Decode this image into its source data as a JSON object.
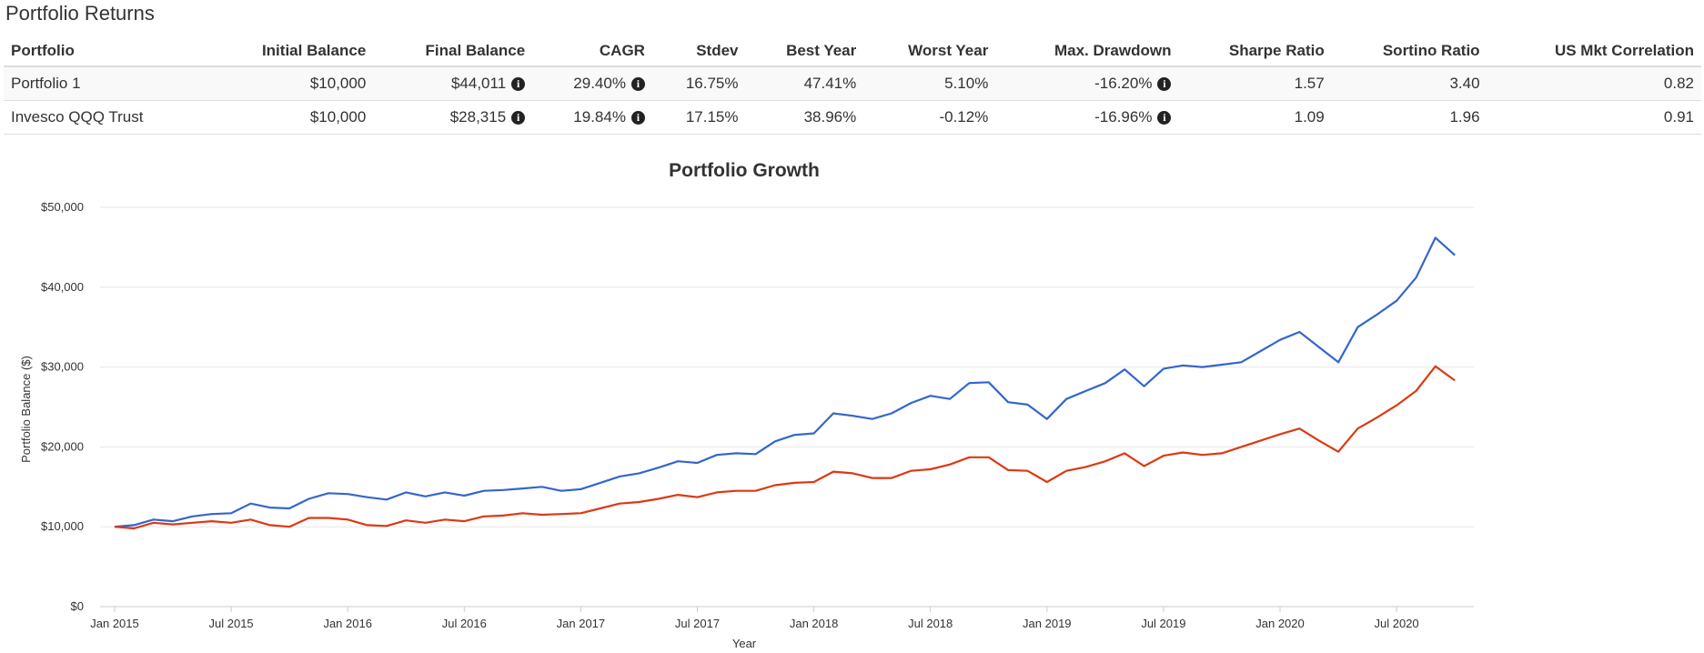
{
  "header": {
    "title": "Portfolio Returns"
  },
  "table": {
    "columns": [
      "Portfolio",
      "Initial Balance",
      "Final Balance",
      "CAGR",
      "Stdev",
      "Best Year",
      "Worst Year",
      "Max. Drawdown",
      "Sharpe Ratio",
      "Sortino Ratio",
      "US Mkt Correlation"
    ],
    "rows": [
      [
        "Portfolio 1",
        "$10,000",
        "$44,011",
        "29.40%",
        "16.75%",
        "47.41%",
        "5.10%",
        "-16.20%",
        "1.57",
        "3.40",
        "0.82"
      ],
      [
        "Invesco QQQ Trust",
        "$10,000",
        "$28,315",
        "19.84%",
        "17.15%",
        "38.96%",
        "-0.12%",
        "-16.96%",
        "1.09",
        "1.96",
        "0.91"
      ]
    ]
  },
  "chart_data": {
    "type": "line",
    "title": "Portfolio Growth",
    "x_label": "Year",
    "y_label": "Portfolio Balance ($)",
    "x": [
      "2015-01",
      "2015-02",
      "2015-03",
      "2015-04",
      "2015-05",
      "2015-06",
      "2015-07",
      "2015-08",
      "2015-09",
      "2015-10",
      "2015-11",
      "2015-12",
      "2016-01",
      "2016-02",
      "2016-03",
      "2016-04",
      "2016-05",
      "2016-06",
      "2016-07",
      "2016-08",
      "2016-09",
      "2016-10",
      "2016-11",
      "2016-12",
      "2017-01",
      "2017-02",
      "2017-03",
      "2017-04",
      "2017-05",
      "2017-06",
      "2017-07",
      "2017-08",
      "2017-09",
      "2017-10",
      "2017-11",
      "2017-12",
      "2018-01",
      "2018-02",
      "2018-03",
      "2018-04",
      "2018-05",
      "2018-06",
      "2018-07",
      "2018-08",
      "2018-09",
      "2018-10",
      "2018-11",
      "2018-12",
      "2019-01",
      "2019-02",
      "2019-03",
      "2019-04",
      "2019-05",
      "2019-06",
      "2019-07",
      "2019-08",
      "2019-09",
      "2019-10",
      "2019-11",
      "2019-12",
      "2020-01",
      "2020-02",
      "2020-03",
      "2020-04",
      "2020-05",
      "2020-06",
      "2020-07",
      "2020-08",
      "2020-09",
      "2020-10"
    ],
    "xticks": [
      {
        "value": "2015-01",
        "label": "Jan 2015"
      },
      {
        "value": "2015-07",
        "label": "Jul 2015"
      },
      {
        "value": "2016-01",
        "label": "Jan 2016"
      },
      {
        "value": "2016-07",
        "label": "Jul 2016"
      },
      {
        "value": "2017-01",
        "label": "Jan 2017"
      },
      {
        "value": "2017-07",
        "label": "Jul 2017"
      },
      {
        "value": "2018-01",
        "label": "Jan 2018"
      },
      {
        "value": "2018-07",
        "label": "Jul 2018"
      },
      {
        "value": "2019-01",
        "label": "Jan 2019"
      },
      {
        "value": "2019-07",
        "label": "Jul 2019"
      },
      {
        "value": "2020-01",
        "label": "Jan 2020"
      },
      {
        "value": "2020-07",
        "label": "Jul 2020"
      }
    ],
    "ylim": [
      0,
      50000
    ],
    "yticks": [
      {
        "value": 0,
        "label": "$0"
      },
      {
        "value": 10000,
        "label": "$10,000"
      },
      {
        "value": 20000,
        "label": "$20,000"
      },
      {
        "value": 30000,
        "label": "$30,000"
      },
      {
        "value": 40000,
        "label": "$40,000"
      },
      {
        "value": 50000,
        "label": "$50,000"
      }
    ],
    "grid": true,
    "series": [
      {
        "name": "Portfolio 1",
        "color": "#3366cc",
        "values": [
          10000,
          10200,
          10900,
          10700,
          11300,
          11600,
          11700,
          12900,
          12400,
          12300,
          13500,
          14200,
          14100,
          13700,
          13400,
          14300,
          13800,
          14300,
          13900,
          14500,
          14600,
          14800,
          15000,
          14500,
          14700,
          15500,
          16300,
          16700,
          17400,
          18200,
          18000,
          19000,
          19200,
          19100,
          20700,
          21500,
          21700,
          24200,
          23900,
          23500,
          24200,
          25500,
          26400,
          26000,
          28000,
          28100,
          25600,
          25300,
          23500,
          26000,
          27000,
          28000,
          29700,
          27600,
          29800,
          30200,
          30000,
          30300,
          30600,
          32000,
          33400,
          34400,
          32500,
          30600,
          35000,
          36600,
          38300,
          41200,
          46200,
          44011
        ]
      },
      {
        "name": "Invesco QQQ Trust",
        "color": "#dc3912",
        "values": [
          10000,
          9800,
          10500,
          10300,
          10500,
          10700,
          10500,
          10900,
          10200,
          10000,
          11100,
          11100,
          10900,
          10200,
          10100,
          10800,
          10500,
          10900,
          10700,
          11300,
          11400,
          11700,
          11500,
          11600,
          11700,
          12300,
          12900,
          13100,
          13500,
          14000,
          13700,
          14300,
          14500,
          14500,
          15200,
          15500,
          15600,
          16900,
          16700,
          16100,
          16100,
          17000,
          17200,
          17800,
          18700,
          18700,
          17100,
          17000,
          15600,
          17000,
          17500,
          18200,
          19200,
          17600,
          18900,
          19300,
          19000,
          19200,
          20000,
          20800,
          21600,
          22300,
          20800,
          19400,
          22300,
          23700,
          25200,
          27000,
          30100,
          28315
        ]
      }
    ]
  }
}
